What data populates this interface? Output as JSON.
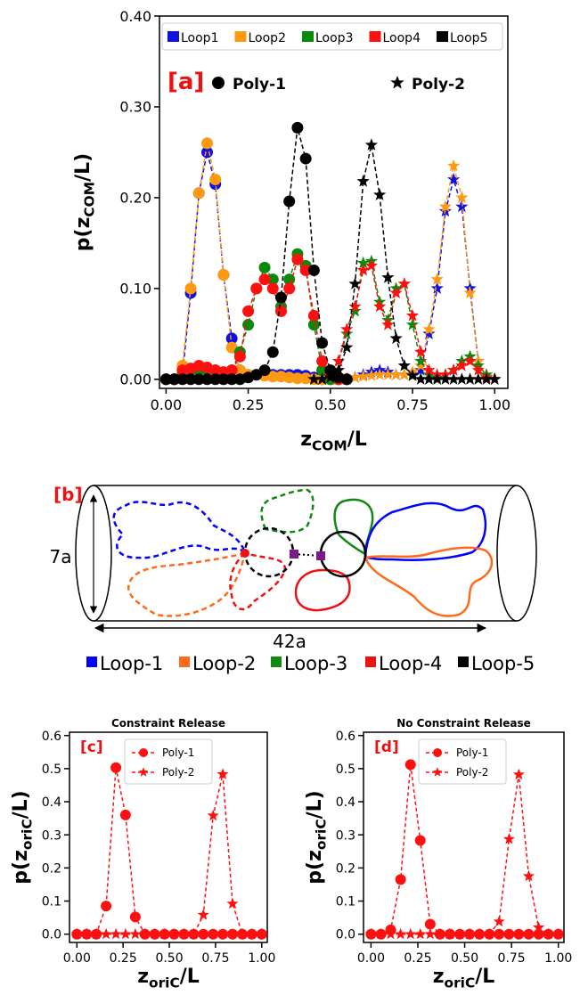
{
  "chart_data": [
    {
      "type": "line",
      "label": "[a]",
      "xlabel": [
        "z",
        "COM",
        "/L"
      ],
      "ylabel": [
        "p(z",
        "COM",
        "/L)"
      ],
      "xlim": [
        -0.02,
        1.04
      ],
      "ylim": [
        -0.01,
        0.4
      ],
      "xticks": [
        {
          "value": 0,
          "label": "0.00"
        },
        {
          "value": 0.25,
          "label": "0.25"
        },
        {
          "value": 0.5,
          "label": "0.50"
        },
        {
          "value": 0.75,
          "label": "0.75"
        },
        {
          "value": 1,
          "label": "1.00"
        }
      ],
      "yticks": [
        {
          "value": 0,
          "label": "0.00"
        },
        {
          "value": 0.1,
          "label": "0.10"
        },
        {
          "value": 0.2,
          "label": "0.20"
        },
        {
          "value": 0.3,
          "label": "0.30"
        },
        {
          "value": 0.4,
          "label": "0.40"
        }
      ],
      "groups": [
        {
          "label": "Poly-1",
          "marker": "circle",
          "x": [
            0,
            0.025,
            0.05,
            0.075,
            0.1,
            0.125,
            0.15,
            0.175,
            0.2,
            0.225,
            0.25,
            0.275,
            0.3,
            0.325,
            0.35,
            0.375,
            0.4,
            0.425,
            0.45,
            0.475,
            0.5,
            0.525,
            0.55
          ]
        },
        {
          "label": "Poly-2",
          "marker": "star",
          "x": [
            0.45,
            0.475,
            0.5,
            0.525,
            0.55,
            0.575,
            0.6,
            0.625,
            0.65,
            0.675,
            0.7,
            0.725,
            0.75,
            0.775,
            0.8,
            0.825,
            0.85,
            0.875,
            0.9,
            0.925,
            0.95,
            0.975,
            1
          ]
        }
      ],
      "series": [
        {
          "name": "Loop1",
          "color": "#1010e0",
          "values": [
            [
              0,
              0,
              0.005,
              0.095,
              0.205,
              0.25,
              0.215,
              0.115,
              0.045,
              0.01,
              0.005,
              0.005,
              0.005,
              0.005,
              0.005,
              0.005,
              0.005,
              0.004,
              0.002,
              0,
              0,
              0,
              0
            ],
            [
              0,
              0,
              0,
              0,
              0,
              0.002,
              0.005,
              0.008,
              0.01,
              0.008,
              0.005,
              0.005,
              0.005,
              0.01,
              0.05,
              0.1,
              0.185,
              0.22,
              0.19,
              0.1,
              0.02,
              0.002,
              0
            ]
          ]
        },
        {
          "name": "Loop2",
          "color": "#ff9a10",
          "values": [
            [
              0,
              0,
              0.015,
              0.1,
              0.205,
              0.26,
              0.22,
              0.115,
              0.035,
              0.01,
              0.005,
              0.005,
              0.004,
              0.003,
              0.003,
              0.002,
              0.001,
              0.001,
              0,
              0,
              0,
              0,
              0
            ],
            [
              0,
              0,
              0,
              0,
              0.001,
              0.002,
              0.003,
              0.004,
              0.005,
              0.005,
              0.005,
              0.005,
              0.008,
              0.015,
              0.055,
              0.11,
              0.19,
              0.235,
              0.2,
              0.095,
              0.02,
              0.003,
              0
            ]
          ]
        },
        {
          "name": "Loop3",
          "color": "#0a8a0a",
          "values": [
            [
              0,
              0,
              0.005,
              0.01,
              0.01,
              0.01,
              0.01,
              0.005,
              0.01,
              0.03,
              0.06,
              0.1,
              0.123,
              0.11,
              0.08,
              0.11,
              0.138,
              0.125,
              0.06,
              0.01,
              0,
              0,
              0
            ],
            [
              0,
              0,
              0.005,
              0.02,
              0.05,
              0.075,
              0.128,
              0.13,
              0.085,
              0.065,
              0.1,
              0.105,
              0.06,
              0.02,
              0.005,
              0.002,
              0.005,
              0.01,
              0.02,
              0.025,
              0.015,
              0.005,
              0
            ]
          ]
        },
        {
          "name": "Loop4",
          "color": "#ff1010",
          "values": [
            [
              0,
              0,
              0.01,
              0.012,
              0.015,
              0.013,
              0.01,
              0.008,
              0.01,
              0.025,
              0.075,
              0.1,
              0.11,
              0.1,
              0.075,
              0.1,
              0.132,
              0.12,
              0.07,
              0.02,
              0.005,
              0,
              0
            ],
            [
              0,
              0,
              0.005,
              0.02,
              0.055,
              0.08,
              0.12,
              0.125,
              0.08,
              0.06,
              0.095,
              0.105,
              0.07,
              0.03,
              0.01,
              0.005,
              0.005,
              0.01,
              0.015,
              0.02,
              0.01,
              0.002,
              0
            ]
          ]
        },
        {
          "name": "Loop5",
          "color": "#000000",
          "values": [
            [
              0,
              0,
              0,
              0,
              0,
              0,
              0,
              0,
              0,
              0,
              0.002,
              0.005,
              0.01,
              0.03,
              0.09,
              0.196,
              0.277,
              0.243,
              0.12,
              0.04,
              0.01,
              0.002,
              0
            ],
            [
              0,
              0,
              0.002,
              0.01,
              0.035,
              0.105,
              0.218,
              0.258,
              0.203,
              0.112,
              0.045,
              0.015,
              0.004,
              0,
              0,
              0,
              0,
              0,
              0,
              0,
              0,
              0,
              0
            ]
          ]
        }
      ]
    },
    {
      "type": "line",
      "title": "Constraint Release",
      "label": "[c]",
      "xlabel": [
        "z",
        "oriC",
        "/L"
      ],
      "ylabel": [
        "p(z",
        "oriC",
        "/L)"
      ],
      "xlim": [
        -0.04,
        1.03
      ],
      "ylim": [
        -0.025,
        0.61
      ],
      "xticks": [
        {
          "value": 0,
          "label": "0.00"
        },
        {
          "value": 0.25,
          "label": "0.25"
        },
        {
          "value": 0.5,
          "label": "0.50"
        },
        {
          "value": 0.75,
          "label": "0.75"
        },
        {
          "value": 1,
          "label": "1.00"
        }
      ],
      "yticks": [
        {
          "value": 0,
          "label": "0.0"
        },
        {
          "value": 0.1,
          "label": "0.1"
        },
        {
          "value": 0.2,
          "label": "0.2"
        },
        {
          "value": 0.3,
          "label": "0.3"
        },
        {
          "value": 0.4,
          "label": "0.4"
        },
        {
          "value": 0.5,
          "label": "0.5"
        },
        {
          "value": 0.6,
          "label": "0.6"
        }
      ],
      "x": [
        0,
        0.053,
        0.105,
        0.158,
        0.211,
        0.263,
        0.316,
        0.368,
        0.421,
        0.474,
        0.526,
        0.579,
        0.632,
        0.684,
        0.737,
        0.789,
        0.842,
        0.895,
        0.947,
        1
      ],
      "series": [
        {
          "name": "Poly-1",
          "marker": "circle",
          "color": "#ff1010",
          "values": [
            0,
            0,
            0,
            0.085,
            0.503,
            0.36,
            0.052,
            0,
            0,
            0,
            0,
            0,
            0,
            0,
            0,
            0,
            0,
            0,
            0,
            0
          ]
        },
        {
          "name": "Poly-2",
          "marker": "star",
          "color": "#ff1010",
          "values": [
            0,
            0,
            0,
            0,
            0,
            0,
            0,
            0,
            0,
            0,
            0,
            0,
            0,
            0.058,
            0.358,
            0.483,
            0.092,
            0,
            0,
            0
          ]
        }
      ]
    },
    {
      "type": "line",
      "title": "No Constraint Release",
      "label": "[d]",
      "xlabel": [
        "z",
        "oriC",
        "/L"
      ],
      "ylabel": [
        "p(z",
        "oriC",
        "/L)"
      ],
      "xlim": [
        -0.04,
        1.03
      ],
      "ylim": [
        -0.025,
        0.61
      ],
      "xticks": [
        {
          "value": 0,
          "label": "0.00"
        },
        {
          "value": 0.25,
          "label": "0.25"
        },
        {
          "value": 0.5,
          "label": "0.50"
        },
        {
          "value": 0.75,
          "label": "0.75"
        },
        {
          "value": 1,
          "label": "1.00"
        }
      ],
      "yticks": [
        {
          "value": 0,
          "label": "0.0"
        },
        {
          "value": 0.1,
          "label": "0.1"
        },
        {
          "value": 0.2,
          "label": "0.2"
        },
        {
          "value": 0.3,
          "label": "0.3"
        },
        {
          "value": 0.4,
          "label": "0.4"
        },
        {
          "value": 0.5,
          "label": "0.5"
        },
        {
          "value": 0.6,
          "label": "0.6"
        }
      ],
      "x": [
        0,
        0.053,
        0.105,
        0.158,
        0.211,
        0.263,
        0.316,
        0.368,
        0.421,
        0.474,
        0.526,
        0.579,
        0.632,
        0.684,
        0.737,
        0.789,
        0.842,
        0.895,
        0.947,
        1
      ],
      "series": [
        {
          "name": "Poly-1",
          "marker": "circle",
          "color": "#ff1010",
          "values": [
            0,
            0,
            0.013,
            0.165,
            0.512,
            0.283,
            0.03,
            0,
            0,
            0,
            0,
            0,
            0,
            0,
            0,
            0,
            0,
            0,
            0,
            0
          ]
        },
        {
          "name": "Poly-2",
          "marker": "star",
          "color": "#ff1010",
          "values": [
            0,
            0,
            0,
            0,
            0,
            0,
            0,
            0,
            0,
            0,
            0,
            0,
            0,
            0.038,
            0.287,
            0.482,
            0.175,
            0.02,
            0,
            0
          ]
        }
      ]
    }
  ],
  "diagram": {
    "label": "[b]",
    "height_label": "7a",
    "length_label": "42a",
    "legend": [
      {
        "name": "Loop-1",
        "color": "#0000ff"
      },
      {
        "name": "Loop-2",
        "color": "#ff6a1a"
      },
      {
        "name": "Loop-3",
        "color": "#118811"
      },
      {
        "name": "Loop-4",
        "color": "#ee1111"
      },
      {
        "name": "Loop-5",
        "color": "#000000"
      }
    ]
  }
}
